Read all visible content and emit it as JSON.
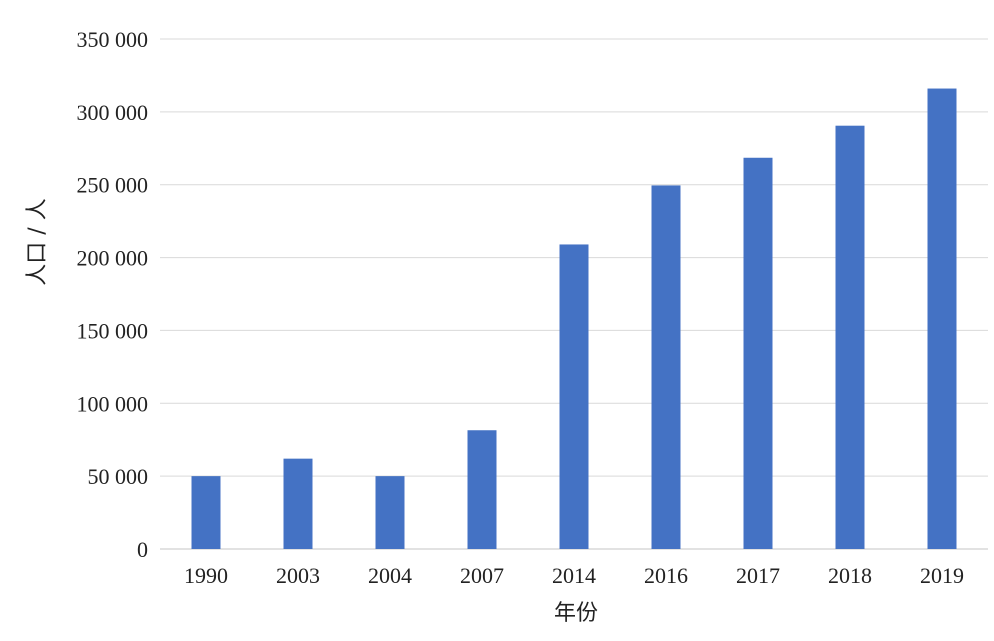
{
  "chart_data": {
    "type": "bar",
    "title": "",
    "xlabel": "年份",
    "ylabel": "人口 / 人",
    "categories": [
      "1990",
      "2003",
      "2004",
      "2007",
      "2014",
      "2016",
      "2017",
      "2018",
      "2019"
    ],
    "series": [
      {
        "values": [
          50000,
          62000,
          50000,
          81500,
          209000,
          249500,
          268500,
          290500,
          316000
        ]
      }
    ],
    "ylim": [
      0,
      350000
    ],
    "yticks": [
      0,
      50000,
      100000,
      150000,
      200000,
      250000,
      300000,
      350000
    ],
    "ytick_labels": [
      "0",
      "50 000",
      "100 000",
      "150 000",
      "200 000",
      "250 000",
      "300 000",
      "350 000"
    ],
    "grid": true,
    "legend": "none",
    "bar_color": "#4472C4",
    "grid_color": "#D9D9D9"
  }
}
